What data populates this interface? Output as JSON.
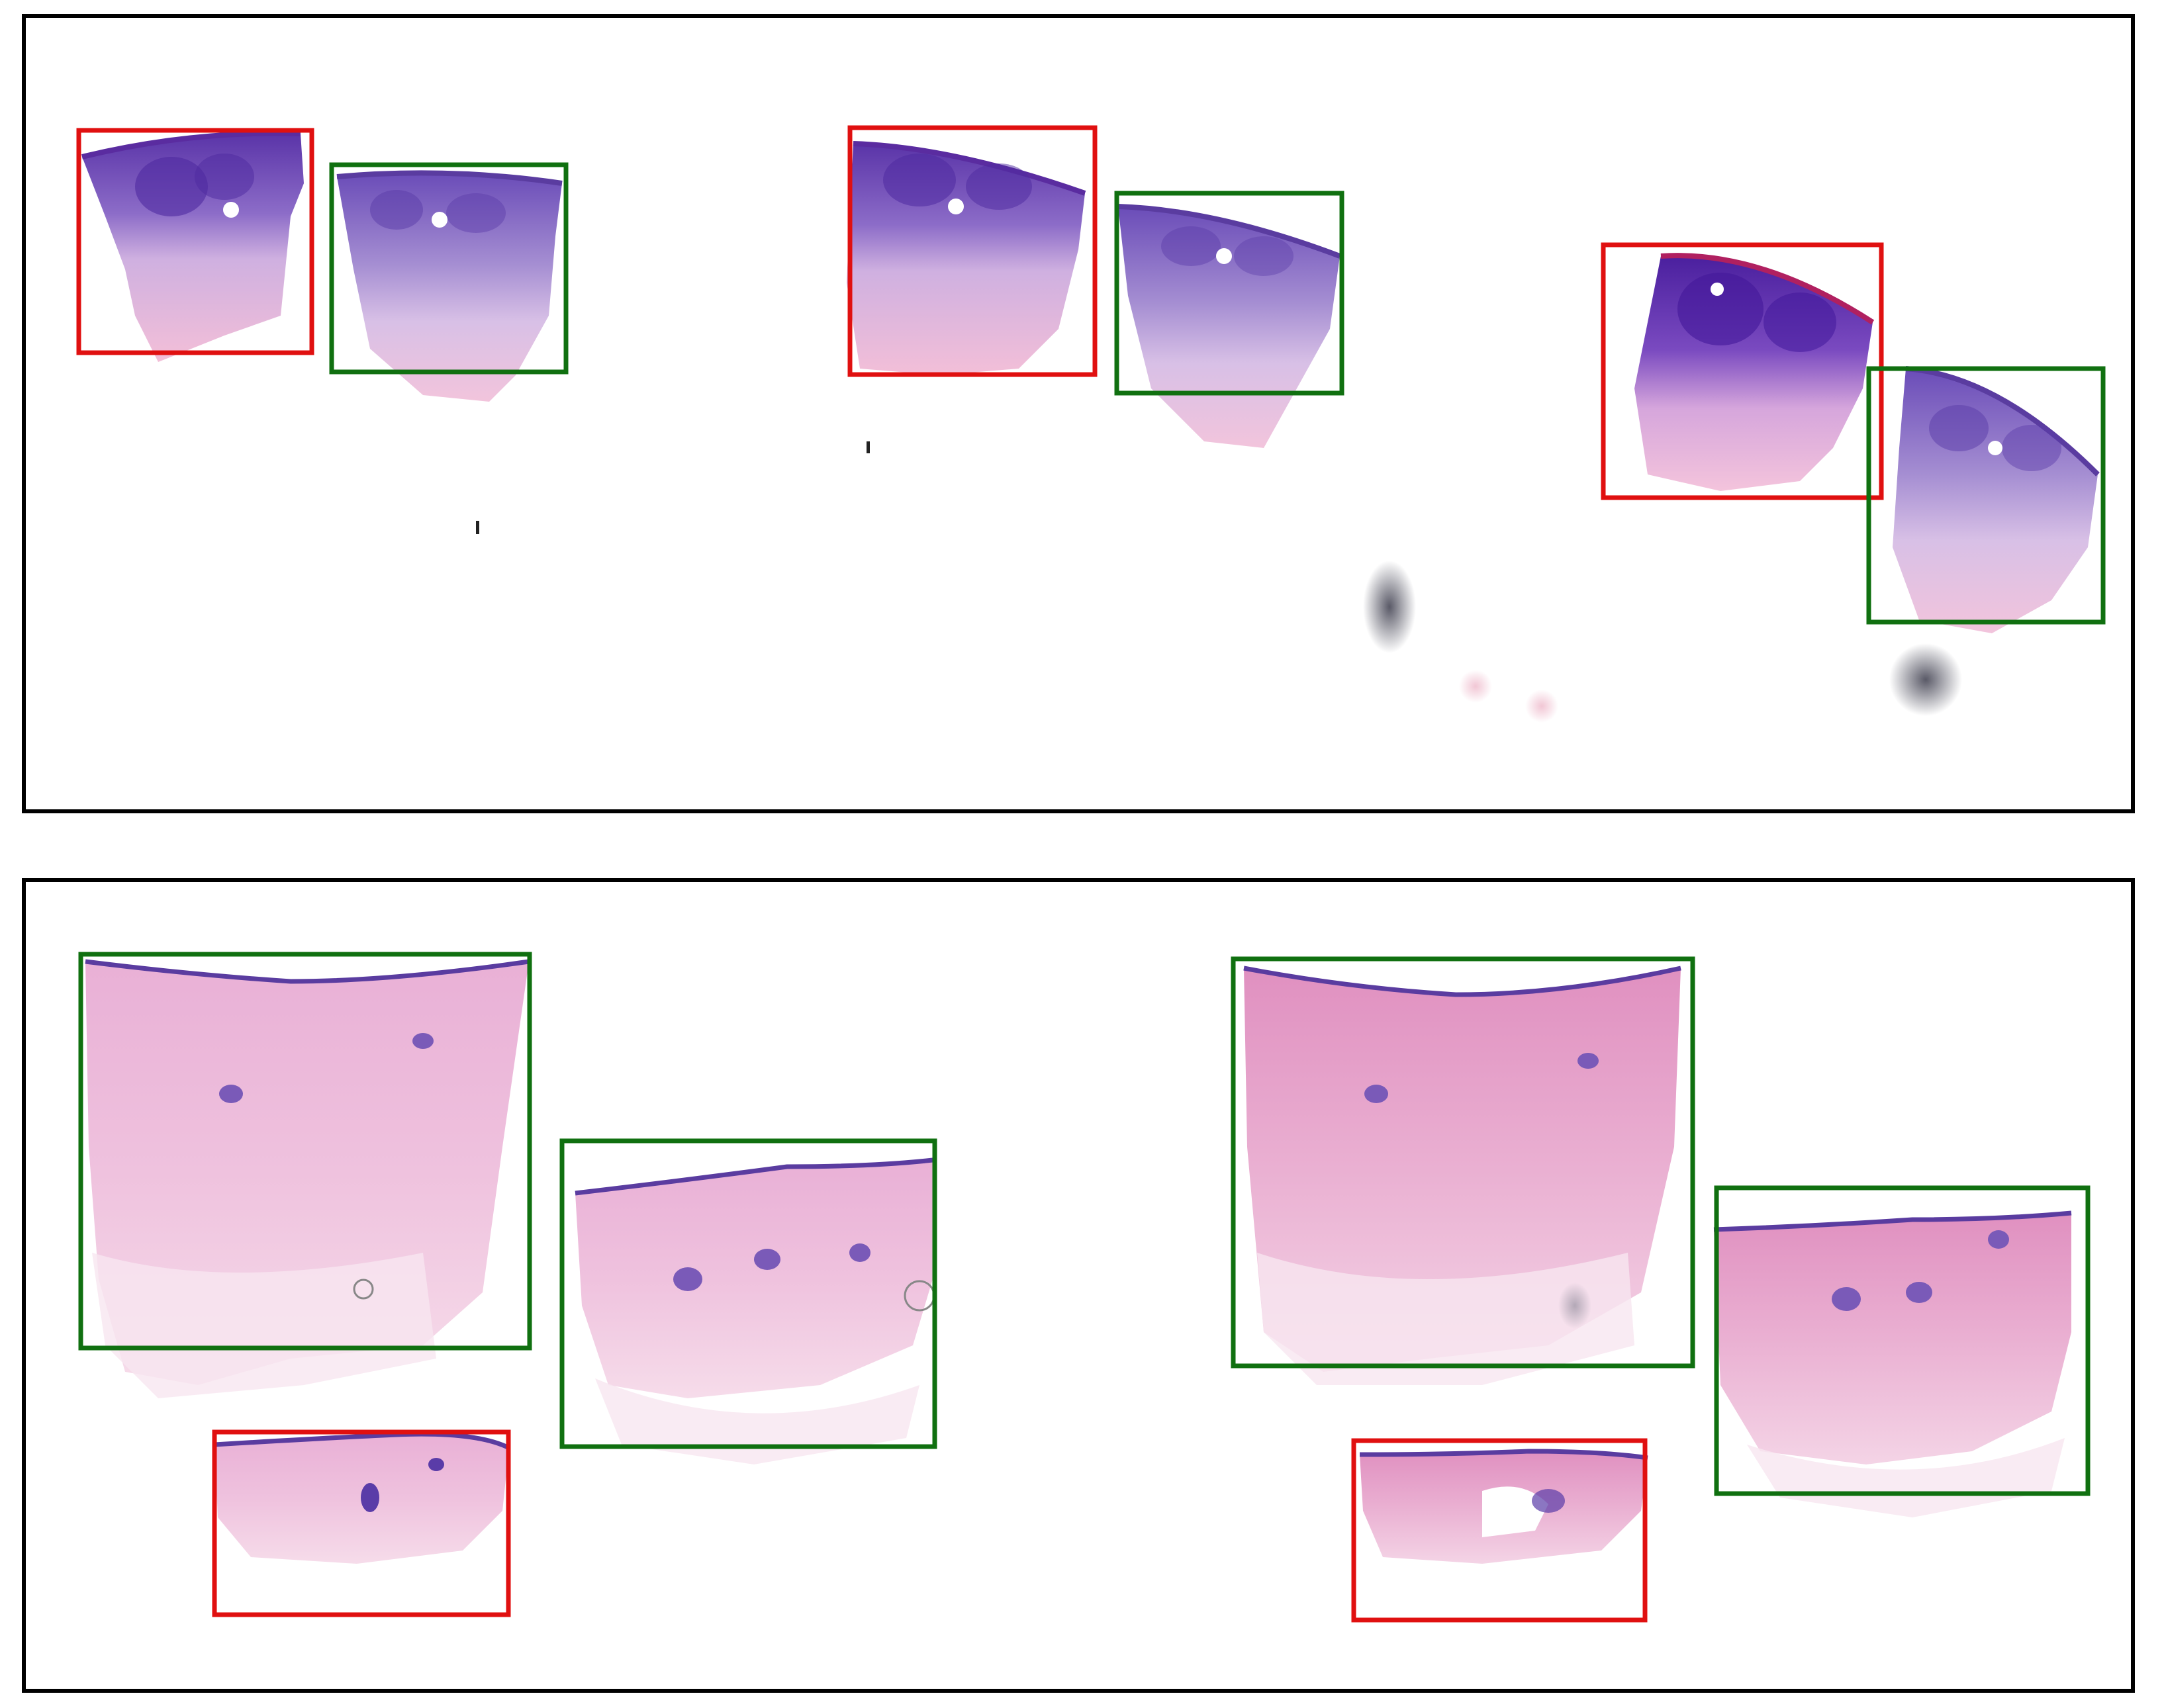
{
  "box_colors": {
    "red": "#e01010",
    "green": "#107010"
  },
  "tissue_colors": {
    "epidermis_dark": "#6a3fb0",
    "dermis_purple": "#9b7ccc",
    "dermis_pink": "#f0b8d8",
    "pale_pink": "#f4d4e8",
    "outline_blue": "#7b62b2",
    "dark_smudge": "#404050"
  },
  "panels": [
    {
      "name": "top",
      "boxes": [
        {
          "color": "red",
          "label": "red-box"
        },
        {
          "color": "green",
          "label": "green-box"
        },
        {
          "color": "red",
          "label": "red-box"
        },
        {
          "color": "green",
          "label": "green-box"
        },
        {
          "color": "red",
          "label": "red-box"
        },
        {
          "color": "green",
          "label": "green-box"
        }
      ]
    },
    {
      "name": "bottom",
      "boxes": [
        {
          "color": "green",
          "label": "green-box"
        },
        {
          "color": "green",
          "label": "green-box"
        },
        {
          "color": "red",
          "label": "red-box"
        },
        {
          "color": "green",
          "label": "green-box"
        },
        {
          "color": "green",
          "label": "green-box"
        },
        {
          "color": "red",
          "label": "red-box"
        }
      ]
    }
  ]
}
